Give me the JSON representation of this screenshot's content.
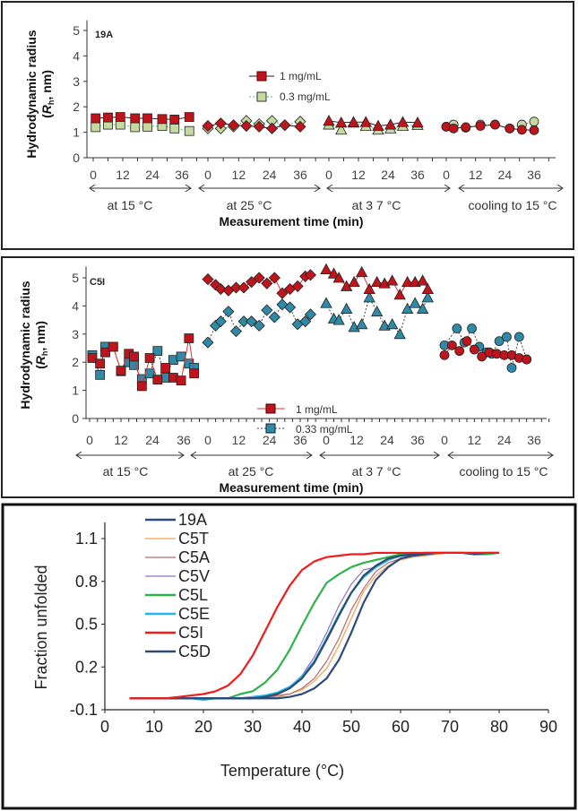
{
  "panels": [
    {
      "id": "19A",
      "label": "19A",
      "ylabel_line1": "Hydrodynamic radius",
      "ylabel_line2_pre": "(",
      "ylabel_R": "R",
      "ylabel_sub": "h",
      "ylabel_line2_post": ", nm)",
      "xlabel": "Measurement time (min)",
      "yticks": [
        "0",
        "1",
        "2",
        "3",
        "4",
        "5"
      ],
      "xticks": [
        "0",
        "12",
        "24",
        "36"
      ],
      "segments": [
        "at 15 °C",
        "at 25 °C",
        "at 3 7 °C",
        "cooling to 15 °C"
      ],
      "legend": [
        "1 mg/mL",
        "0.3 mg/mL"
      ]
    },
    {
      "id": "C5I",
      "label": "C5I",
      "ylabel_line1": "Hydrodynamic radius",
      "ylabel_line2_pre": "(",
      "ylabel_R": "R",
      "ylabel_sub": "h",
      "ylabel_line2_post": ", nm)",
      "xlabel": "Measurement time (min)",
      "yticks": [
        "0",
        "1",
        "2",
        "3",
        "4",
        "5"
      ],
      "xticks": [
        "0",
        "12",
        "24",
        "36"
      ],
      "segments": [
        "at 15 °C",
        "at 25 °C",
        "at 3 7 °C",
        "cooling to 15 °C"
      ],
      "legend": [
        "1 mg/mL",
        "0.33 mg/mL"
      ]
    }
  ],
  "chart_data": [
    {
      "type": "scatter",
      "title": "19A",
      "xlabel": "Measurement time (min)",
      "ylabel": "Hydrodynamic radius (Rh, nm)",
      "ylim": [
        0,
        5
      ],
      "segments": [
        "at 15 °C",
        "at 25 °C",
        "at 3 7 °C",
        "cooling to 15 °C"
      ],
      "markers": [
        "square",
        "diamond",
        "triangle",
        "circle"
      ],
      "series": [
        {
          "name": "1 mg/mL",
          "color": "#c0141c",
          "line": "solid",
          "line_color": "#222222",
          "x": [
            [
              1,
              6,
              11,
              17,
              22,
              28,
              33,
              39
            ],
            [
              0,
              5,
              10,
              15,
              20,
              25,
              30,
              36
            ],
            [
              0,
              5,
              10,
              15,
              20,
              25,
              30,
              36
            ],
            [
              0,
              3,
              8,
              14,
              20,
              26,
              31,
              36
            ]
          ],
          "y": [
            [
              1.55,
              1.58,
              1.6,
              1.55,
              1.55,
              1.52,
              1.5,
              1.6
            ],
            [
              1.25,
              1.35,
              1.28,
              1.25,
              1.22,
              1.15,
              1.28,
              1.22
            ],
            [
              1.45,
              1.38,
              1.4,
              1.4,
              1.25,
              1.3,
              1.4,
              1.38
            ],
            [
              1.22,
              1.15,
              1.2,
              1.25,
              1.3,
              1.15,
              1.1,
              1.08
            ]
          ]
        },
        {
          "name": "0.3 mg/mL",
          "color": "#c5d9a0",
          "line": "dotted",
          "line_color": "#3cc07a",
          "x": [
            [
              1,
              6,
              11,
              17,
              22,
              28,
              33,
              39
            ],
            [
              0,
              5,
              10,
              15,
              20,
              25,
              30,
              36
            ],
            [
              0,
              5,
              10,
              15,
              20,
              25,
              30,
              36
            ],
            [
              0,
              3,
              8,
              14,
              20,
              26,
              31,
              36
            ]
          ],
          "y": [
            [
              1.2,
              1.3,
              1.3,
              1.2,
              1.22,
              1.25,
              1.15,
              1.05
            ],
            [
              1.15,
              1.15,
              1.22,
              1.45,
              1.32,
              1.45,
              1.28,
              1.42
            ],
            [
              1.3,
              1.1,
              1.38,
              1.25,
              1.1,
              1.15,
              1.25,
              1.28
            ],
            [
              1.22,
              1.3,
              1.18,
              1.3,
              1.3,
              1.15,
              1.3,
              1.42
            ]
          ]
        }
      ]
    },
    {
      "type": "scatter",
      "title": "C5I",
      "xlabel": "Measurement time (min)",
      "ylabel": "Hydrodynamic radius (Rh, nm)",
      "ylim": [
        0,
        5
      ],
      "segments": [
        "at 15 °C",
        "at 25 °C",
        "at 3 7 °C",
        "cooling to 15 °C"
      ],
      "markers": [
        "square",
        "diamond",
        "triangle",
        "circle"
      ],
      "series": [
        {
          "name": "1 mg/mL",
          "color": "#c0141c",
          "line": "solid",
          "line_color": "#e03030",
          "x": [
            [
              1,
              4,
              6,
              9,
              12,
              15,
              17,
              20,
              23,
              26,
              29,
              32,
              35,
              38,
              40
            ],
            [
              0,
              3,
              5,
              8,
              11,
              14,
              17,
              20,
              23,
              26,
              29,
              32,
              35,
              38,
              40
            ],
            [
              0,
              3,
              5,
              8,
              11,
              14,
              17,
              20,
              23,
              26,
              29,
              32,
              35,
              38,
              40
            ],
            [
              0,
              3,
              6,
              9,
              12,
              15,
              18,
              21,
              24,
              27,
              30,
              33
            ]
          ],
          "y": [
            [
              2.15,
              1.95,
              2.35,
              2.55,
              1.7,
              2.3,
              2.2,
              1.15,
              2.15,
              1.38,
              1.8,
              1.45,
              1.35,
              2.85,
              1.6
            ],
            [
              4.95,
              4.75,
              4.6,
              4.55,
              4.65,
              4.65,
              4.85,
              5.0,
              4.8,
              5.0,
              4.45,
              4.6,
              4.7,
              5.05,
              5.1
            ],
            [
              5.3,
              5.15,
              5.0,
              4.7,
              4.85,
              5.2,
              4.6,
              4.85,
              4.8,
              4.9,
              4.4,
              4.85,
              4.85,
              4.9,
              4.6
            ],
            [
              2.25,
              2.6,
              2.4,
              2.75,
              2.45,
              2.2,
              2.35,
              2.3,
              2.25,
              2.25,
              2.15,
              2.1
            ]
          ]
        },
        {
          "name": "0.33 mg/mL",
          "color": "#2e8aa6",
          "line": "dotted",
          "line_color": "#444444",
          "x": [
            [
              1,
              4,
              6,
              9,
              12,
              15,
              17,
              20,
              23,
              26,
              29,
              32,
              35,
              38,
              40
            ],
            [
              0,
              3,
              5,
              8,
              11,
              14,
              17,
              20,
              23,
              26,
              29,
              32,
              35,
              38,
              40
            ],
            [
              0,
              3,
              5,
              8,
              11,
              14,
              17,
              20,
              23,
              26,
              29,
              32,
              35,
              38,
              40
            ],
            [
              0,
              5,
              8,
              11,
              14,
              17,
              19,
              22,
              25,
              27,
              30,
              33
            ]
          ],
          "y": [
            [
              2.25,
              1.55,
              2.55,
              2.55,
              1.68,
              2.0,
              1.9,
              1.4,
              1.6,
              2.4,
              1.45,
              2.08,
              2.2,
              1.95,
              1.8
            ],
            [
              2.7,
              3.3,
              3.45,
              3.8,
              3.1,
              3.45,
              3.45,
              3.3,
              3.85,
              3.6,
              4.05,
              3.95,
              3.35,
              3.45,
              3.7
            ],
            [
              4.1,
              3.55,
              3.5,
              3.9,
              3.25,
              3.35,
              4.3,
              3.8,
              3.3,
              3.35,
              3.0,
              3.9,
              4.1,
              3.9,
              4.3
            ],
            [
              2.6,
              3.2,
              2.7,
              3.2,
              2.55,
              2.35,
              2.3,
              2.75,
              2.9,
              1.8,
              2.9,
              2.1
            ]
          ]
        }
      ]
    },
    {
      "type": "line",
      "title": "",
      "xlabel": "Temperature (°C)",
      "ylabel": "Fraction unfolded",
      "xlim": [
        0,
        90
      ],
      "ylim": [
        -0.1,
        1.1
      ],
      "xticks": [
        "0",
        "10",
        "20",
        "30",
        "40",
        "50",
        "60",
        "70",
        "80",
        "90"
      ],
      "yticks": [
        "-0.1",
        "0.2",
        "0.5",
        "0.8",
        "1.1"
      ],
      "legend_position": "top-left",
      "x": [
        5,
        7.5,
        10,
        12.5,
        15,
        17.5,
        20,
        22.5,
        25,
        27.5,
        30,
        32.5,
        35,
        37.5,
        40,
        42.5,
        45,
        47.5,
        50,
        52.5,
        55,
        57.5,
        60,
        62.5,
        65,
        67.5,
        70,
        72.5,
        75,
        77.5,
        80
      ],
      "series": [
        {
          "name": "19A",
          "color": "#2d4a7a",
          "values": [
            -0.02,
            -0.02,
            -0.02,
            -0.02,
            -0.02,
            -0.02,
            -0.02,
            -0.02,
            -0.02,
            -0.02,
            -0.02,
            -0.02,
            -0.02,
            -0.01,
            0.01,
            0.05,
            0.12,
            0.25,
            0.44,
            0.65,
            0.81,
            0.9,
            0.96,
            0.98,
            0.99,
            1.0,
            1.0,
            1.0,
            0.99,
            1.0,
            1.0
          ]
        },
        {
          "name": "C5T",
          "color": "#f0a050",
          "values": [
            -0.02,
            -0.02,
            -0.02,
            -0.02,
            -0.02,
            -0.02,
            -0.02,
            -0.02,
            -0.02,
            -0.02,
            -0.02,
            -0.02,
            -0.01,
            0.01,
            0.04,
            0.1,
            0.19,
            0.35,
            0.54,
            0.73,
            0.84,
            0.91,
            0.95,
            0.97,
            0.98,
            0.99,
            1.0,
            1.0,
            1.0,
            1.0,
            1.0
          ]
        },
        {
          "name": "C5A",
          "color": "#b86a6a",
          "values": [
            -0.02,
            -0.02,
            -0.02,
            -0.02,
            -0.02,
            -0.02,
            -0.02,
            -0.02,
            -0.02,
            -0.02,
            -0.02,
            -0.02,
            0.0,
            0.01,
            0.05,
            0.12,
            0.24,
            0.4,
            0.6,
            0.75,
            0.87,
            0.93,
            0.96,
            0.98,
            0.99,
            1.0,
            1.0,
            1.0,
            1.0,
            1.0,
            1.0
          ]
        },
        {
          "name": "C5V",
          "color": "#9b6fc6",
          "values": [
            -0.02,
            -0.02,
            -0.02,
            -0.02,
            -0.02,
            -0.02,
            -0.02,
            -0.02,
            -0.02,
            -0.02,
            -0.02,
            0.0,
            0.02,
            0.06,
            0.14,
            0.27,
            0.44,
            0.63,
            0.78,
            0.88,
            0.9,
            0.95,
            0.98,
            0.99,
            1.0,
            1.0,
            1.0,
            1.0,
            1.0,
            1.0,
            1.0
          ]
        },
        {
          "name": "C5L",
          "color": "#2db34a",
          "values": [
            -0.02,
            -0.02,
            -0.02,
            -0.02,
            -0.02,
            -0.02,
            -0.02,
            -0.02,
            -0.02,
            0.01,
            0.03,
            0.09,
            0.18,
            0.32,
            0.49,
            0.65,
            0.79,
            0.85,
            0.9,
            0.93,
            0.95,
            0.97,
            0.99,
            1.0,
            1.0,
            1.0,
            1.0,
            1.0,
            0.99,
            0.99,
            1.0
          ]
        },
        {
          "name": "C5E",
          "color": "#1fb4f2",
          "values": [
            -0.02,
            -0.02,
            -0.02,
            -0.02,
            -0.02,
            -0.02,
            -0.03,
            -0.02,
            -0.02,
            -0.02,
            -0.01,
            0.0,
            0.02,
            0.06,
            0.13,
            0.24,
            0.4,
            0.57,
            0.72,
            0.83,
            0.9,
            0.95,
            0.98,
            0.99,
            1.0,
            1.0,
            1.0,
            1.0,
            1.0,
            1.0,
            1.0
          ]
        },
        {
          "name": "C5I",
          "color": "#f01c1c",
          "values": [
            -0.02,
            -0.02,
            -0.02,
            -0.02,
            -0.01,
            0.0,
            0.01,
            0.03,
            0.07,
            0.15,
            0.28,
            0.45,
            0.62,
            0.77,
            0.88,
            0.94,
            0.97,
            0.98,
            0.99,
            0.99,
            1.0,
            1.0,
            1.0,
            1.0,
            1.0,
            1.0,
            1.0,
            1.0,
            1.0,
            1.0,
            1.0
          ]
        },
        {
          "name": "C5D",
          "color": "#2e4d6b",
          "values": [
            -0.02,
            -0.02,
            -0.02,
            -0.02,
            -0.02,
            -0.02,
            -0.02,
            -0.02,
            -0.02,
            -0.02,
            -0.02,
            -0.01,
            0.01,
            0.05,
            0.12,
            0.23,
            0.39,
            0.56,
            0.72,
            0.84,
            0.91,
            0.96,
            0.98,
            0.99,
            1.0,
            1.0,
            1.0,
            1.0,
            1.0,
            1.0,
            1.0
          ]
        }
      ]
    }
  ]
}
